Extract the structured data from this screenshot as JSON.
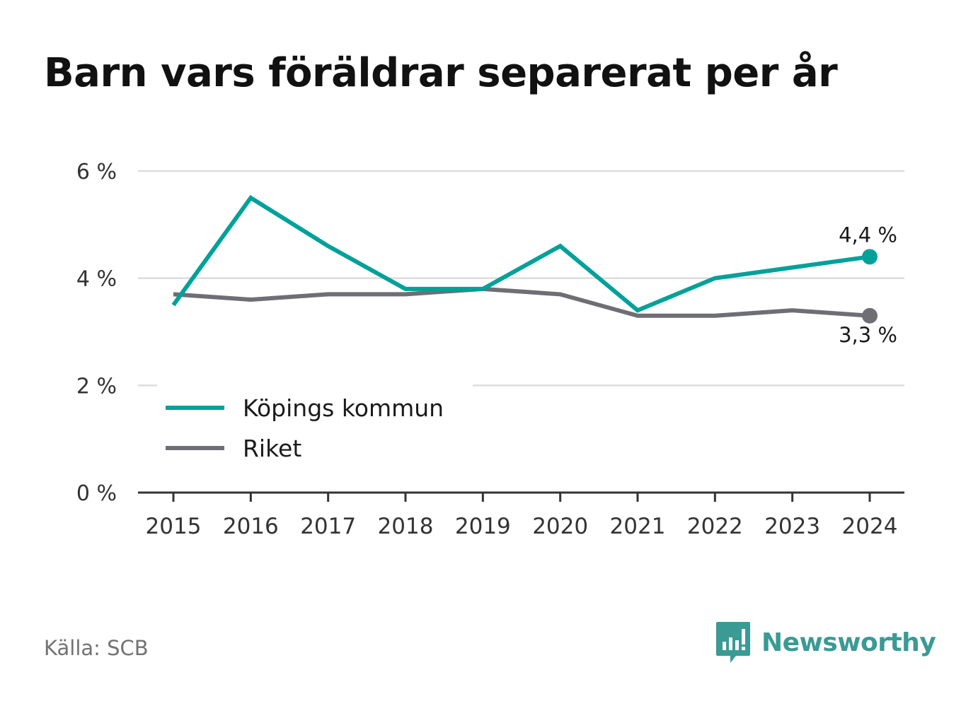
{
  "title": "Barn vars föräldrar separerat per år",
  "source": "Källa: SCB",
  "brand": {
    "name": "Newsworthy",
    "icon": "newsworthy-logo-icon",
    "color": "#3a9a94"
  },
  "chart_data": {
    "type": "line",
    "title": "Barn vars föräldrar separerat per år",
    "x": [
      "2015",
      "2016",
      "2017",
      "2018",
      "2019",
      "2020",
      "2021",
      "2022",
      "2023",
      "2024"
    ],
    "series": [
      {
        "name": "Köpings kommun",
        "color": "#00a19a",
        "values": [
          3.5,
          5.5,
          4.6,
          3.8,
          3.8,
          4.6,
          3.4,
          4.0,
          4.2,
          4.4
        ],
        "end_label": "4,4 %"
      },
      {
        "name": "Riket",
        "color": "#6f6e75",
        "values": [
          3.7,
          3.6,
          3.7,
          3.7,
          3.8,
          3.7,
          3.3,
          3.3,
          3.4,
          3.3
        ],
        "end_label": "3,3 %"
      }
    ],
    "y_ticks": [
      0,
      2,
      4,
      6
    ],
    "y_tick_labels": [
      "0 %",
      "2 %",
      "4 %",
      "6 %"
    ],
    "ylim": [
      0,
      6
    ],
    "xlabel": "",
    "ylabel": "",
    "grid": true,
    "legend_position": "bottom-left"
  }
}
